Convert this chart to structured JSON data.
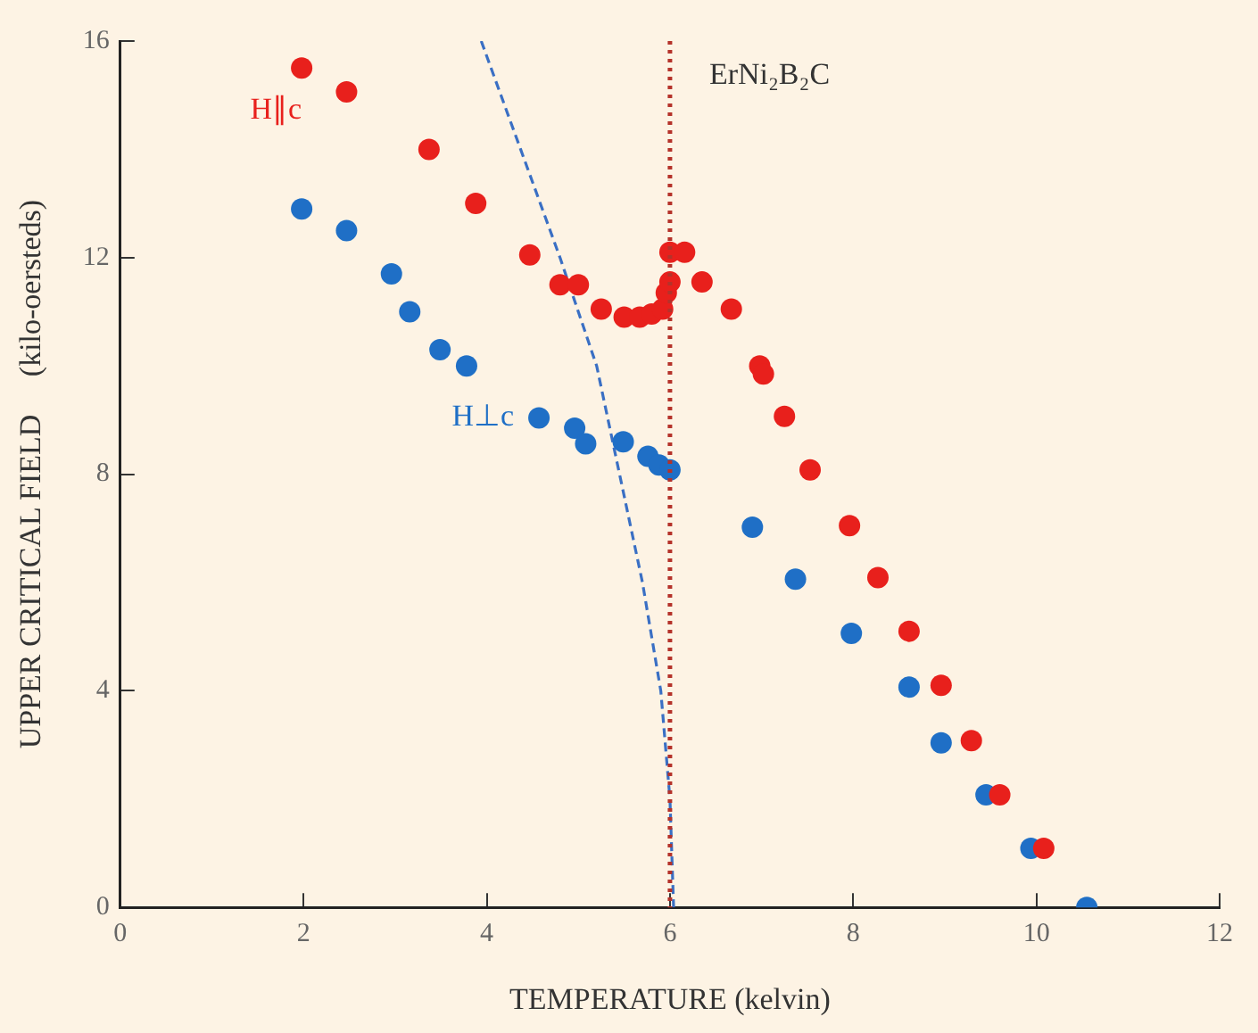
{
  "chart_data": {
    "type": "scatter",
    "xlabel": "TEMPERATURE (kelvin)",
    "ylabel": "UPPER CRITICAL FIELD     (kilo-oersteds)",
    "annotations": [
      "ErNi₂B₂C"
    ],
    "xlim": [
      0,
      12
    ],
    "xticks": [
      0,
      2,
      4,
      6,
      8,
      10,
      12
    ],
    "ylim": [
      0,
      16
    ],
    "yticks": [
      0,
      4,
      8,
      12,
      16
    ],
    "grid": false,
    "legend": false,
    "marker": "circle",
    "series": [
      {
        "name": "H∥c",
        "color": "#e8201c",
        "x": [
          1.98,
          2.47,
          3.37,
          3.88,
          4.47,
          4.8,
          5.0,
          5.25,
          5.5,
          5.67,
          5.8,
          5.92,
          5.96,
          6.0,
          6.0,
          6.16,
          6.35,
          6.67,
          6.98,
          7.02,
          7.25,
          7.53,
          7.96,
          8.27,
          8.61,
          8.96,
          9.29,
          9.6,
          10.08
        ],
        "values": [
          15.5,
          15.06,
          14.0,
          13.0,
          12.05,
          11.5,
          11.5,
          11.05,
          10.9,
          10.9,
          10.96,
          11.05,
          11.35,
          11.55,
          12.1,
          12.1,
          11.55,
          11.05,
          10.0,
          9.85,
          9.07,
          8.08,
          7.05,
          6.09,
          5.1,
          4.1,
          3.08,
          2.08,
          1.09
        ]
      },
      {
        "name": "H⊥c",
        "color": "#1f6fc6",
        "x": [
          1.98,
          2.47,
          2.96,
          3.16,
          3.49,
          3.78,
          4.57,
          4.96,
          5.08,
          5.49,
          5.76,
          5.88,
          6.0,
          6.9,
          7.37,
          7.98,
          8.61,
          8.96,
          9.45,
          9.94,
          10.55
        ],
        "values": [
          12.9,
          12.5,
          11.7,
          11.0,
          10.3,
          10.0,
          9.04,
          8.85,
          8.56,
          8.6,
          8.33,
          8.17,
          8.08,
          7.02,
          6.06,
          5.06,
          4.07,
          3.04,
          2.08,
          1.09,
          0.0
        ]
      },
      {
        "type": "line",
        "color": "#3a6fc4",
        "line_style": "dashed",
        "marker": "none",
        "x": [
          3.94,
          4.37,
          4.8,
          5.2,
          5.45,
          5.7,
          5.9,
          6.0,
          6.04
        ],
        "values": [
          16,
          14,
          12,
          10,
          8,
          6,
          4,
          2,
          0
        ]
      }
    ],
    "ref_lines": [
      {
        "axis": "x",
        "value": 6,
        "color": "#b5322a",
        "line_style": "dotted"
      }
    ]
  }
}
